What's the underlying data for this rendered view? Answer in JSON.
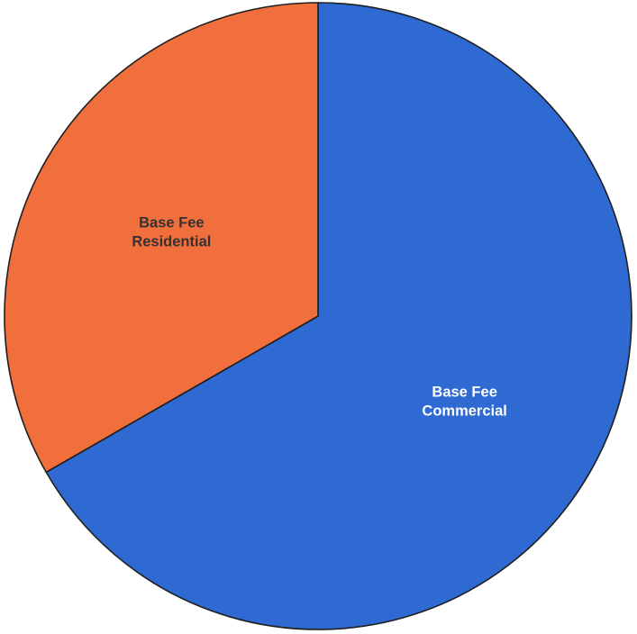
{
  "chart_data": {
    "type": "pie",
    "title": "",
    "legend": "none",
    "start": "12 o'clock, clockwise",
    "slices": [
      {
        "label_lines": [
          "Base Fee",
          "Commercial"
        ],
        "value": 66.7,
        "color": "#2e6ad2",
        "label_color": "#ffffff"
      },
      {
        "label_lines": [
          "Base Fee",
          "Residential"
        ],
        "value": 33.3,
        "color": "#f16f3c",
        "label_color": "#333333"
      }
    ]
  }
}
